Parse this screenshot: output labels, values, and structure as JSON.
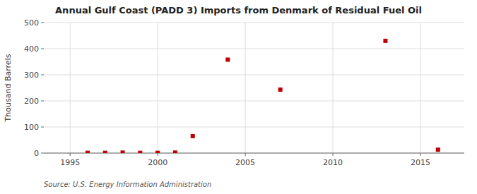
{
  "chart_data": {
    "type": "scatter",
    "title": "Annual Gulf Coast (PADD 3) Imports from Denmark of Residual Fuel Oil",
    "ylabel": "Thousand Barrels",
    "source": "Source: U.S. Energy Information Administration",
    "x": [
      1996,
      1997,
      1998,
      1999,
      2000,
      2001,
      2002,
      2004,
      2007,
      2013,
      2016
    ],
    "values": [
      1,
      1,
      2,
      1,
      1,
      2,
      65,
      358,
      243,
      430,
      13
    ],
    "xlim": [
      1993.5,
      2017.5
    ],
    "ylim": [
      0,
      500
    ],
    "xticks": [
      1995,
      2000,
      2005,
      2010,
      2015
    ],
    "yticks": [
      0,
      100,
      200,
      300,
      400,
      500
    ],
    "grid": true,
    "color": "#c00000",
    "marker": "square"
  }
}
